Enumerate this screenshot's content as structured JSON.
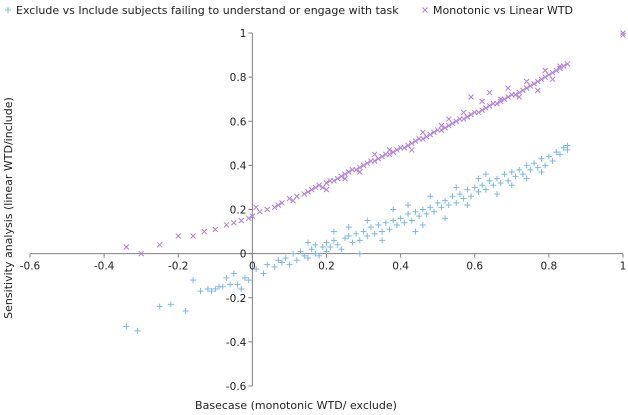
{
  "chart_data": {
    "type": "scatter",
    "title": "",
    "xlabel": "Basecase (monotonic WTD/ exclude)",
    "ylabel": "Sensitivity analysis (linear WTD/include)",
    "xlim": [
      -0.6,
      1
    ],
    "ylim": [
      -0.6,
      1
    ],
    "x_ticks": [
      -0.6,
      -0.4,
      -0.2,
      0,
      0.2,
      0.4,
      0.6,
      0.8,
      1
    ],
    "y_ticks": [
      -0.6,
      -0.4,
      -0.2,
      0,
      0.2,
      0.4,
      0.6,
      0.8,
      1
    ],
    "x_tick_labels": [
      "-0.6",
      "-0.4",
      "-0.2",
      "0",
      "0.2",
      "0.4",
      "0.6",
      "0.8",
      "1"
    ],
    "y_tick_labels": [
      "-0.6",
      "-0.4",
      "-0.2",
      "0",
      "0.2",
      "0.4",
      "0.6",
      "0.8",
      "1"
    ],
    "legend_position": "top",
    "series": [
      {
        "name": "Exclude vs Include subjects failing to understand or engage with task",
        "marker": "+",
        "color": "#7ab8ec",
        "points": [
          [
            -0.34,
            -0.33
          ],
          [
            -0.31,
            -0.35
          ],
          [
            -0.25,
            -0.24
          ],
          [
            -0.22,
            -0.23
          ],
          [
            -0.18,
            -0.26
          ],
          [
            -0.16,
            -0.12
          ],
          [
            -0.14,
            -0.17
          ],
          [
            -0.12,
            -0.16
          ],
          [
            -0.11,
            -0.17
          ],
          [
            -0.1,
            -0.16
          ],
          [
            -0.09,
            -0.15
          ],
          [
            -0.08,
            -0.15
          ],
          [
            -0.07,
            -0.11
          ],
          [
            -0.06,
            -0.14
          ],
          [
            -0.05,
            -0.09
          ],
          [
            -0.04,
            -0.14
          ],
          [
            -0.03,
            -0.16
          ],
          [
            -0.02,
            -0.11
          ],
          [
            -0.01,
            -0.12
          ],
          [
            0.01,
            -0.07
          ],
          [
            0.03,
            -0.09
          ],
          [
            0.04,
            -0.05
          ],
          [
            0.06,
            -0.06
          ],
          [
            0.07,
            -0.03
          ],
          [
            0.08,
            -0.04
          ],
          [
            0.09,
            -0.02
          ],
          [
            0.1,
            -0.05
          ],
          [
            0.11,
            0.0
          ],
          [
            0.12,
            -0.03
          ],
          [
            0.13,
            0.01
          ],
          [
            0.14,
            -0.01
          ],
          [
            0.15,
            -0.02
          ],
          [
            0.16,
            0.02
          ],
          [
            0.17,
            0.0
          ],
          [
            0.17,
            0.04
          ],
          [
            0.18,
            -0.01
          ],
          [
            0.19,
            0.03
          ],
          [
            0.2,
            0.05
          ],
          [
            0.2,
            0.01
          ],
          [
            0.21,
            0.03
          ],
          [
            0.22,
            0.06
          ],
          [
            0.23,
            0.04
          ],
          [
            0.24,
            0.02
          ],
          [
            0.25,
            0.07
          ],
          [
            0.26,
            0.08
          ],
          [
            0.27,
            0.05
          ],
          [
            0.28,
            0.09
          ],
          [
            0.29,
            0.06
          ],
          [
            0.3,
            0.1
          ],
          [
            0.31,
            0.08
          ],
          [
            0.32,
            0.12
          ],
          [
            0.33,
            0.09
          ],
          [
            0.34,
            0.13
          ],
          [
            0.35,
            0.1
          ],
          [
            0.36,
            0.14
          ],
          [
            0.37,
            0.11
          ],
          [
            0.38,
            0.15
          ],
          [
            0.39,
            0.13
          ],
          [
            0.4,
            0.16
          ],
          [
            0.41,
            0.14
          ],
          [
            0.42,
            0.18
          ],
          [
            0.43,
            0.15
          ],
          [
            0.44,
            0.19
          ],
          [
            0.45,
            0.17
          ],
          [
            0.46,
            0.2
          ],
          [
            0.47,
            0.18
          ],
          [
            0.48,
            0.21
          ],
          [
            0.49,
            0.19
          ],
          [
            0.5,
            0.23
          ],
          [
            0.51,
            0.21
          ],
          [
            0.52,
            0.24
          ],
          [
            0.53,
            0.22
          ],
          [
            0.54,
            0.26
          ],
          [
            0.55,
            0.23
          ],
          [
            0.56,
            0.27
          ],
          [
            0.57,
            0.25
          ],
          [
            0.58,
            0.29
          ],
          [
            0.59,
            0.26
          ],
          [
            0.6,
            0.3
          ],
          [
            0.61,
            0.28
          ],
          [
            0.62,
            0.31
          ],
          [
            0.63,
            0.29
          ],
          [
            0.64,
            0.33
          ],
          [
            0.65,
            0.31
          ],
          [
            0.66,
            0.34
          ],
          [
            0.67,
            0.32
          ],
          [
            0.68,
            0.36
          ],
          [
            0.69,
            0.33
          ],
          [
            0.7,
            0.37
          ],
          [
            0.71,
            0.35
          ],
          [
            0.72,
            0.38
          ],
          [
            0.73,
            0.36
          ],
          [
            0.74,
            0.4
          ],
          [
            0.75,
            0.38
          ],
          [
            0.76,
            0.41
          ],
          [
            0.77,
            0.39
          ],
          [
            0.78,
            0.43
          ],
          [
            0.79,
            0.4
          ],
          [
            0.8,
            0.44
          ],
          [
            0.81,
            0.42
          ],
          [
            0.82,
            0.46
          ],
          [
            0.83,
            0.45
          ],
          [
            0.84,
            0.48
          ],
          [
            0.85,
            0.49
          ],
          [
            0.85,
            0.47
          ],
          [
            0.26,
            0.12
          ],
          [
            0.29,
            0.0
          ],
          [
            0.35,
            0.06
          ],
          [
            0.44,
            0.1
          ],
          [
            0.48,
            0.26
          ],
          [
            0.52,
            0.16
          ],
          [
            0.58,
            0.22
          ],
          [
            0.61,
            0.34
          ],
          [
            0.66,
            0.27
          ],
          [
            0.7,
            0.31
          ],
          [
            0.74,
            0.34
          ],
          [
            0.78,
            0.37
          ],
          [
            0.38,
            0.2
          ],
          [
            0.42,
            0.22
          ],
          [
            0.46,
            0.13
          ],
          [
            0.55,
            0.3
          ],
          [
            0.15,
            0.05
          ],
          [
            0.22,
            0.1
          ],
          [
            0.31,
            0.15
          ],
          [
            0.63,
            0.36
          ]
        ]
      },
      {
        "name": "Monotonic vs Linear WTD",
        "marker": "x",
        "color": "#b07fe0",
        "points": [
          [
            -0.34,
            0.03
          ],
          [
            -0.3,
            0.0
          ],
          [
            -0.25,
            0.04
          ],
          [
            -0.2,
            0.08
          ],
          [
            -0.16,
            0.08
          ],
          [
            -0.13,
            0.1
          ],
          [
            -0.1,
            0.11
          ],
          [
            -0.07,
            0.13
          ],
          [
            -0.05,
            0.14
          ],
          [
            -0.03,
            0.15
          ],
          [
            -0.01,
            0.16
          ],
          [
            0.0,
            0.17
          ],
          [
            0.01,
            0.21
          ],
          [
            0.02,
            0.19
          ],
          [
            0.04,
            0.2
          ],
          [
            0.06,
            0.21
          ],
          [
            0.08,
            0.23
          ],
          [
            0.1,
            0.25
          ],
          [
            0.11,
            0.24
          ],
          [
            0.12,
            0.26
          ],
          [
            0.14,
            0.27
          ],
          [
            0.15,
            0.28
          ],
          [
            0.16,
            0.29
          ],
          [
            0.17,
            0.3
          ],
          [
            0.18,
            0.31
          ],
          [
            0.19,
            0.3
          ],
          [
            0.2,
            0.32
          ],
          [
            0.21,
            0.33
          ],
          [
            0.22,
            0.33
          ],
          [
            0.23,
            0.34
          ],
          [
            0.24,
            0.35
          ],
          [
            0.25,
            0.36
          ],
          [
            0.26,
            0.37
          ],
          [
            0.27,
            0.38
          ],
          [
            0.28,
            0.38
          ],
          [
            0.29,
            0.39
          ],
          [
            0.3,
            0.4
          ],
          [
            0.31,
            0.41
          ],
          [
            0.32,
            0.42
          ],
          [
            0.33,
            0.42
          ],
          [
            0.34,
            0.43
          ],
          [
            0.35,
            0.44
          ],
          [
            0.36,
            0.45
          ],
          [
            0.37,
            0.45
          ],
          [
            0.38,
            0.46
          ],
          [
            0.39,
            0.47
          ],
          [
            0.4,
            0.48
          ],
          [
            0.41,
            0.48
          ],
          [
            0.42,
            0.49
          ],
          [
            0.43,
            0.5
          ],
          [
            0.44,
            0.51
          ],
          [
            0.45,
            0.52
          ],
          [
            0.46,
            0.52
          ],
          [
            0.47,
            0.53
          ],
          [
            0.48,
            0.54
          ],
          [
            0.49,
            0.55
          ],
          [
            0.5,
            0.56
          ],
          [
            0.51,
            0.56
          ],
          [
            0.52,
            0.57
          ],
          [
            0.53,
            0.58
          ],
          [
            0.54,
            0.59
          ],
          [
            0.55,
            0.6
          ],
          [
            0.56,
            0.61
          ],
          [
            0.57,
            0.61
          ],
          [
            0.58,
            0.62
          ],
          [
            0.59,
            0.63
          ],
          [
            0.6,
            0.64
          ],
          [
            0.61,
            0.64
          ],
          [
            0.62,
            0.65
          ],
          [
            0.63,
            0.66
          ],
          [
            0.64,
            0.67
          ],
          [
            0.65,
            0.68
          ],
          [
            0.66,
            0.68
          ],
          [
            0.67,
            0.69
          ],
          [
            0.68,
            0.7
          ],
          [
            0.69,
            0.71
          ],
          [
            0.7,
            0.72
          ],
          [
            0.71,
            0.72
          ],
          [
            0.72,
            0.73
          ],
          [
            0.73,
            0.74
          ],
          [
            0.74,
            0.75
          ],
          [
            0.75,
            0.76
          ],
          [
            0.76,
            0.77
          ],
          [
            0.77,
            0.78
          ],
          [
            0.78,
            0.79
          ],
          [
            0.79,
            0.8
          ],
          [
            0.8,
            0.81
          ],
          [
            0.81,
            0.82
          ],
          [
            0.82,
            0.83
          ],
          [
            0.83,
            0.84
          ],
          [
            0.84,
            0.85
          ],
          [
            0.85,
            0.86
          ],
          [
            0.59,
            0.71
          ],
          [
            0.62,
            0.69
          ],
          [
            0.64,
            0.73
          ],
          [
            0.67,
            0.7
          ],
          [
            0.69,
            0.75
          ],
          [
            0.72,
            0.71
          ],
          [
            0.74,
            0.78
          ],
          [
            0.77,
            0.74
          ],
          [
            0.79,
            0.83
          ],
          [
            0.81,
            0.79
          ],
          [
            0.83,
            0.85
          ],
          [
            0.46,
            0.55
          ],
          [
            0.53,
            0.61
          ],
          [
            0.37,
            0.47
          ],
          [
            0.29,
            0.37
          ],
          [
            0.25,
            0.34
          ],
          [
            0.2,
            0.29
          ],
          [
            0.43,
            0.47
          ],
          [
            0.57,
            0.64
          ],
          [
            0.51,
            0.58
          ],
          [
            0.33,
            0.45
          ],
          [
            0.07,
            0.22
          ],
          [
            1.0,
            1.0
          ],
          [
            1.0,
            0.99
          ]
        ]
      }
    ]
  }
}
